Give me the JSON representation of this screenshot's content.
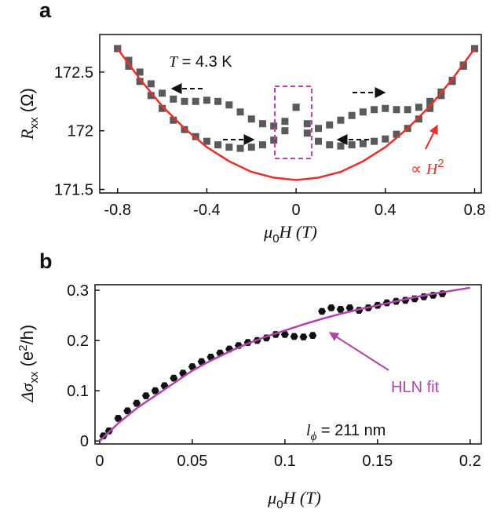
{
  "chart_data": [
    {
      "type": "line",
      "panel_label": "a",
      "xlabel": [
        "μ",
        "0",
        "H (T)"
      ],
      "ylabel": [
        "R",
        "xx",
        " (Ω)"
      ],
      "annotations": [
        [
          "T",
          " = 4.3 K"
        ],
        [
          "∝ ",
          "H",
          "2"
        ]
      ],
      "xlim": [
        -0.88,
        0.83
      ],
      "ylim": [
        171.47,
        172.82
      ],
      "xticks": [
        -0.8,
        -0.4,
        0,
        0.4,
        0.8
      ],
      "yticks": [
        171.5,
        172,
        172.5
      ],
      "series": [
        {
          "marker": "square",
          "color": "#5a5a5a",
          "x": [
            -0.8,
            -0.75,
            -0.7,
            -0.65,
            -0.6,
            -0.55,
            -0.5,
            -0.45,
            -0.4,
            -0.35,
            -0.3,
            -0.25,
            -0.2,
            -0.15,
            -0.1,
            -0.05,
            0,
            0.05,
            0.1,
            0.15,
            0.2,
            0.25,
            0.3,
            0.35,
            0.4,
            0.45,
            0.5,
            0.55,
            0.6,
            0.65,
            0.7,
            0.75,
            0.8
          ],
          "values": [
            172.7,
            172.6,
            172.5,
            172.4,
            172.32,
            172.27,
            172.25,
            172.25,
            172.26,
            172.25,
            172.22,
            172.16,
            172.1,
            172.06,
            172.04,
            172.08,
            172.2,
            172.06,
            172.02,
            172.05,
            172.09,
            172.13,
            172.16,
            172.18,
            172.19,
            172.18,
            172.18,
            172.2,
            172.25,
            172.33,
            172.43,
            172.56,
            172.7
          ]
        },
        {
          "marker": "square",
          "color": "#5a5a5a",
          "x": [
            -0.8,
            -0.75,
            -0.7,
            -0.65,
            -0.6,
            -0.55,
            -0.5,
            -0.45,
            -0.4,
            -0.35,
            -0.3,
            -0.25,
            -0.2,
            -0.15,
            -0.1,
            -0.05,
            0,
            0.05,
            0.1,
            0.15,
            0.2,
            0.25,
            0.3,
            0.35,
            0.4,
            0.45,
            0.5,
            0.55,
            0.6,
            0.65,
            0.7,
            0.75,
            0.8
          ],
          "values": [
            172.7,
            172.55,
            172.42,
            172.3,
            172.19,
            172.09,
            172.01,
            171.95,
            171.91,
            171.88,
            171.86,
            171.85,
            171.86,
            171.88,
            171.92,
            172.0,
            172.2,
            171.98,
            171.91,
            171.88,
            171.87,
            171.88,
            171.89,
            171.91,
            171.93,
            171.97,
            172.02,
            172.1,
            172.19,
            172.3,
            172.42,
            172.55,
            172.7
          ]
        },
        {
          "marker": "none",
          "color": "#e8302a",
          "x": [
            -0.8,
            -0.7,
            -0.6,
            -0.5,
            -0.4,
            -0.3,
            -0.2,
            -0.1,
            0,
            0.1,
            0.2,
            0.3,
            0.4,
            0.5,
            0.6,
            0.7,
            0.8
          ],
          "values": [
            172.7,
            172.44,
            172.21,
            172.02,
            171.86,
            171.74,
            171.65,
            171.6,
            171.58,
            171.6,
            171.65,
            171.74,
            171.86,
            172.02,
            172.21,
            172.44,
            172.7
          ]
        }
      ]
    },
    {
      "type": "line",
      "panel_label": "b",
      "xlabel": [
        "μ",
        "0",
        "H (T)"
      ],
      "ylabel": [
        "Δσ",
        "xx",
        " (e",
        "2",
        "/h)"
      ],
      "annotations": [
        [
          "l",
          "ϕ",
          " = 211 nm"
        ],
        [
          "HLN fit"
        ]
      ],
      "xlim": [
        -0.0025,
        0.206
      ],
      "ylim": [
        -0.006,
        0.311
      ],
      "xticks": [
        0,
        0.05,
        0.1,
        0.15,
        0.2
      ],
      "yticks": [
        0,
        0.1,
        0.2,
        0.3
      ],
      "series": [
        {
          "marker": "hexagon",
          "color": "#111111",
          "x": [
            0.002,
            0.005,
            0.01,
            0.015,
            0.02,
            0.025,
            0.03,
            0.035,
            0.04,
            0.045,
            0.05,
            0.055,
            0.06,
            0.065,
            0.07,
            0.075,
            0.08,
            0.085,
            0.09,
            0.095,
            0.1,
            0.105,
            0.11,
            0.115,
            0.12,
            0.125,
            0.13,
            0.135,
            0.14,
            0.145,
            0.15,
            0.155,
            0.16,
            0.165,
            0.17,
            0.175,
            0.18,
            0.185
          ],
          "values": [
            0.01,
            0.02,
            0.045,
            0.06,
            0.075,
            0.09,
            0.1,
            0.11,
            0.125,
            0.135,
            0.148,
            0.158,
            0.167,
            0.175,
            0.183,
            0.19,
            0.196,
            0.2,
            0.205,
            0.212,
            0.212,
            0.208,
            0.207,
            0.21,
            0.258,
            0.265,
            0.262,
            0.265,
            0.26,
            0.265,
            0.27,
            0.275,
            0.278,
            0.28,
            0.283,
            0.287,
            0.29,
            0.293
          ]
        },
        {
          "marker": "none",
          "color": "#b044a8",
          "x": [
            0,
            0.01,
            0.02,
            0.03,
            0.04,
            0.05,
            0.06,
            0.07,
            0.08,
            0.09,
            0.1,
            0.11,
            0.12,
            0.13,
            0.14,
            0.15,
            0.16,
            0.17,
            0.18,
            0.19,
            0.2
          ],
          "values": [
            0,
            0.035,
            0.065,
            0.09,
            0.115,
            0.14,
            0.16,
            0.178,
            0.194,
            0.208,
            0.22,
            0.232,
            0.243,
            0.253,
            0.262,
            0.27,
            0.278,
            0.286,
            0.293,
            0.299,
            0.305
          ]
        }
      ]
    }
  ]
}
